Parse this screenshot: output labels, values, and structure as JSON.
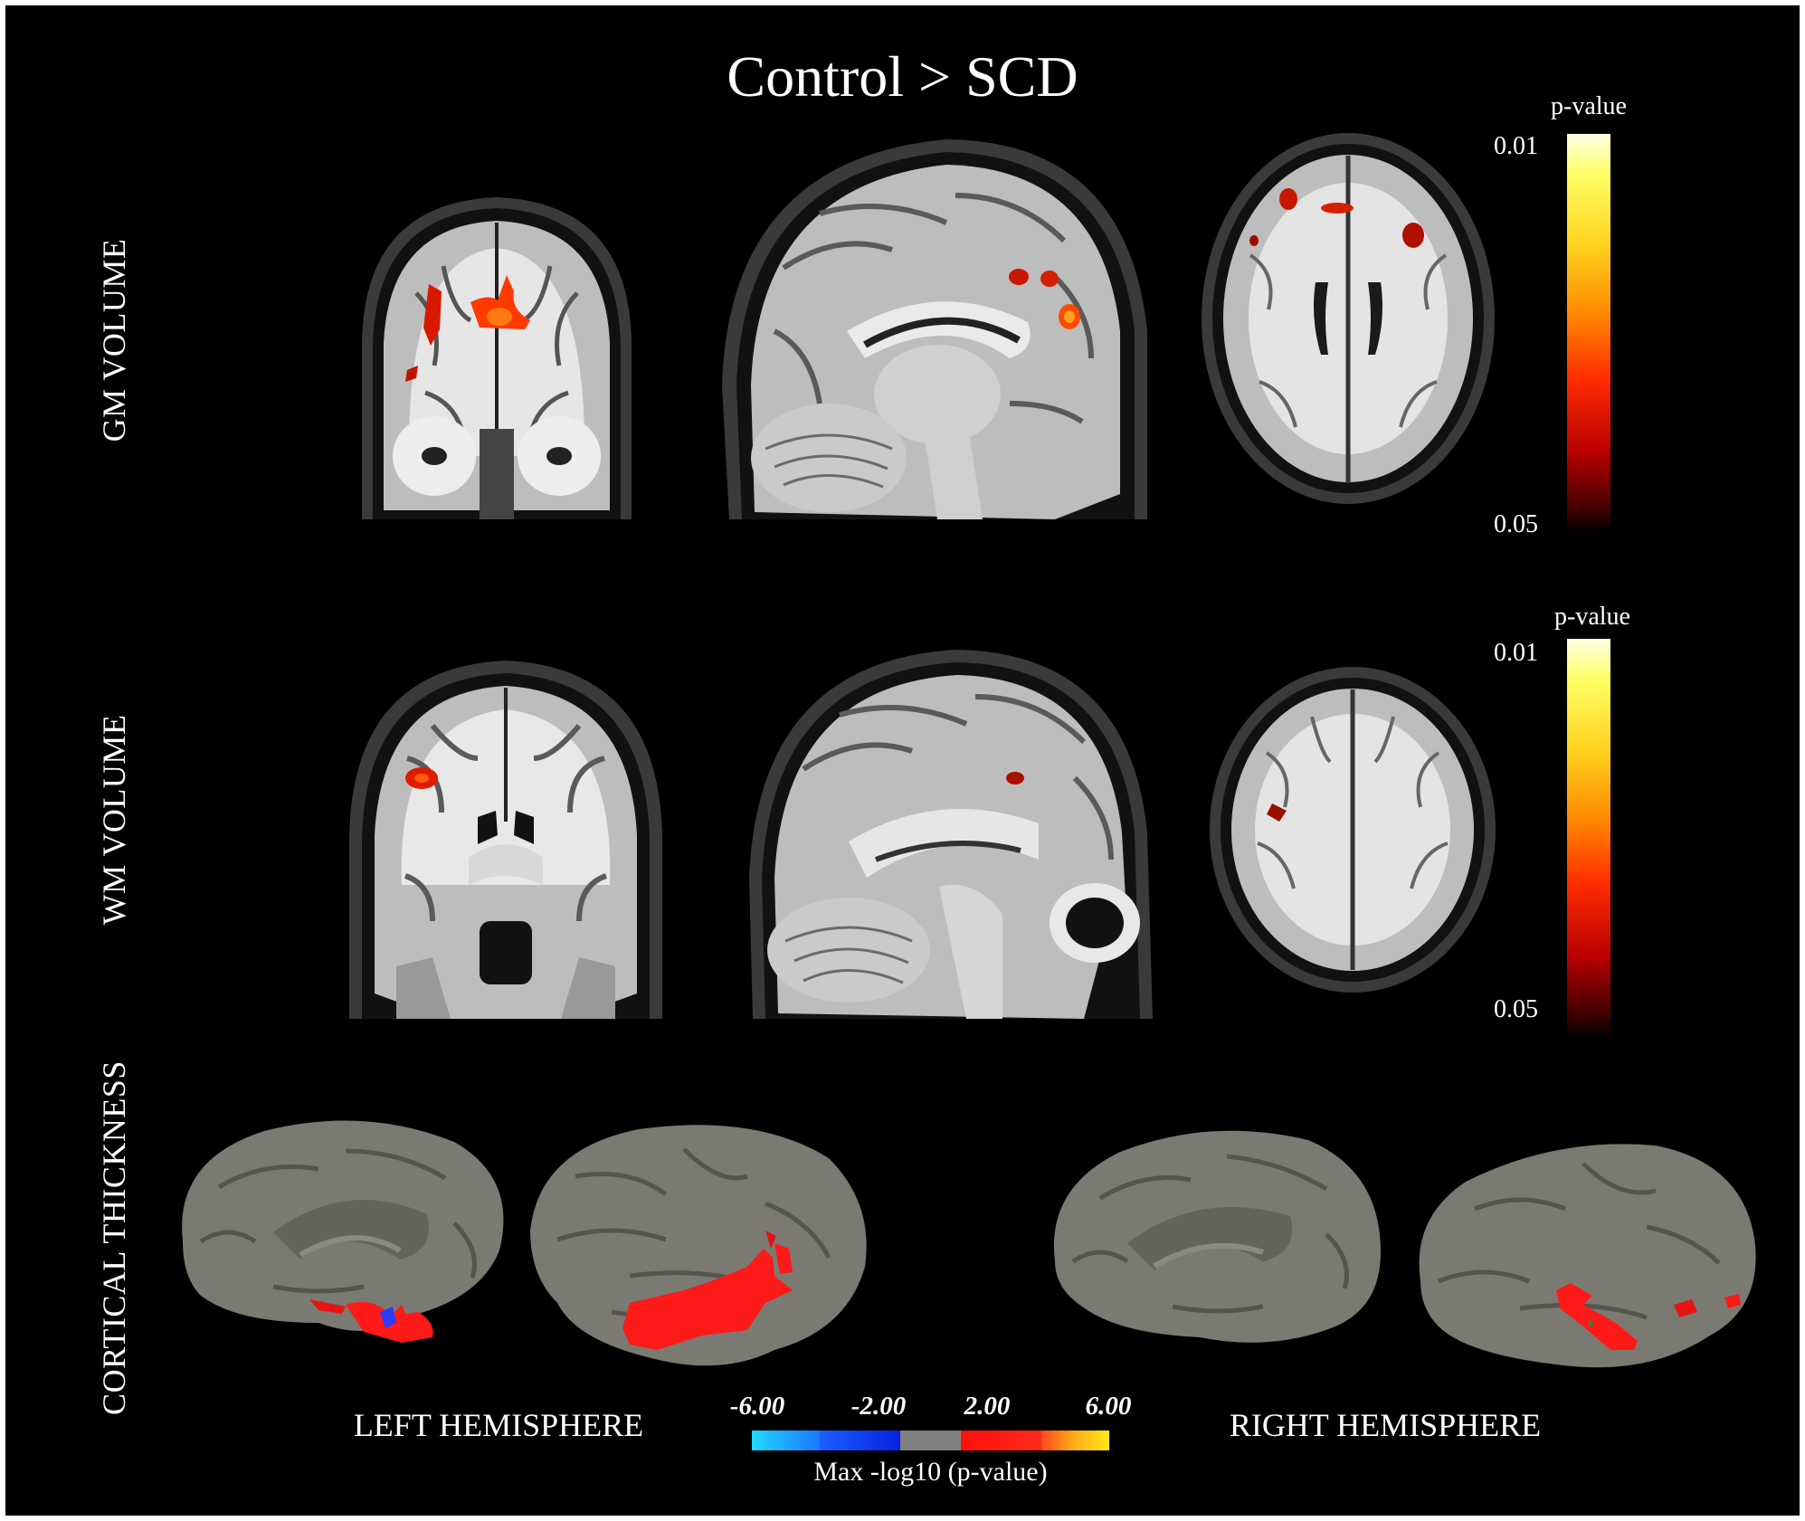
{
  "title": "Control > SCD",
  "rows": {
    "gm_label": "GM VOLUME",
    "wm_label": "WM VOLUME",
    "ct_label": "CORTICAL THICKNESS"
  },
  "colorbars": {
    "gm": {
      "title": "p-value",
      "top_tick": "0.01",
      "bottom_tick": "0.05"
    },
    "wm": {
      "title": "p-value",
      "top_tick": "0.01",
      "bottom_tick": "0.05"
    }
  },
  "hemispheres": {
    "left": "LEFT HEMISPHERE",
    "right": "RIGHT HEMISPHERE"
  },
  "thickness_scale": {
    "ticks": [
      "-6.00",
      "-2.00",
      "2.00",
      "6.00"
    ],
    "caption": "Max -log10 (p-value)",
    "colors": [
      "#22d8ff",
      "#1030ff",
      "#808080",
      "#ff1a1a",
      "#ffe81a"
    ]
  },
  "colors": {
    "background": "#000000",
    "significant": "#ff2a00"
  }
}
